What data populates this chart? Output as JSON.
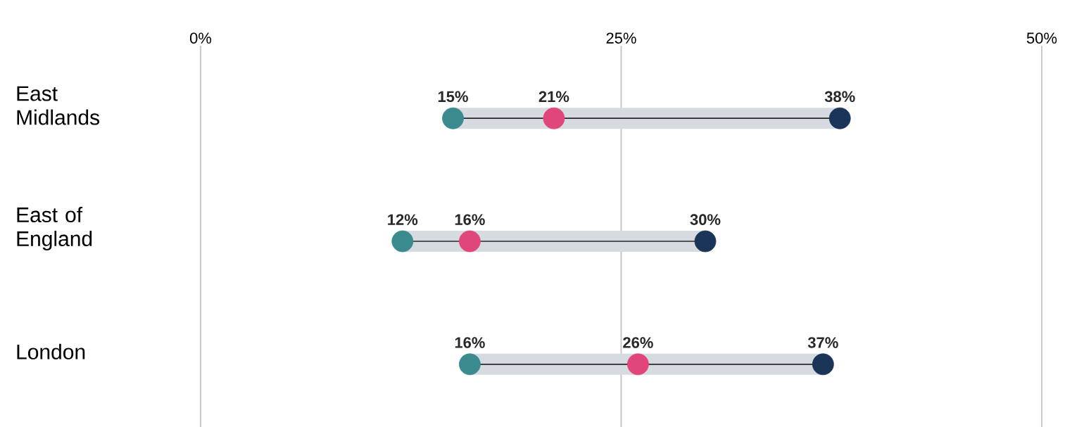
{
  "chart_data": {
    "type": "scatter",
    "orientation": "horizontal",
    "categories": [
      "East Midlands",
      "East of England",
      "London"
    ],
    "xlim": [
      0,
      50
    ],
    "xticks": [
      {
        "value": 0,
        "label": "0%"
      },
      {
        "value": 25,
        "label": "25%"
      },
      {
        "value": 50,
        "label": "50%"
      }
    ],
    "grid": "x",
    "series": [
      {
        "type": "bar",
        "color": "#d5dbe0",
        "base": [
          15,
          12,
          16
        ],
        "values": [
          23,
          18,
          21
        ]
      },
      {
        "color": "#3a8a8e",
        "values": [
          15,
          12,
          16
        ],
        "value_labels": [
          "15%",
          "12%",
          "16%"
        ]
      },
      {
        "color": "#e0457b",
        "values": [
          21,
          16,
          26
        ],
        "value_labels": [
          "21%",
          "16%",
          "26%"
        ]
      },
      {
        "color": "#1b3558",
        "values": [
          38,
          30,
          37
        ],
        "value_labels": [
          "38%",
          "30%",
          "37%"
        ]
      }
    ]
  }
}
